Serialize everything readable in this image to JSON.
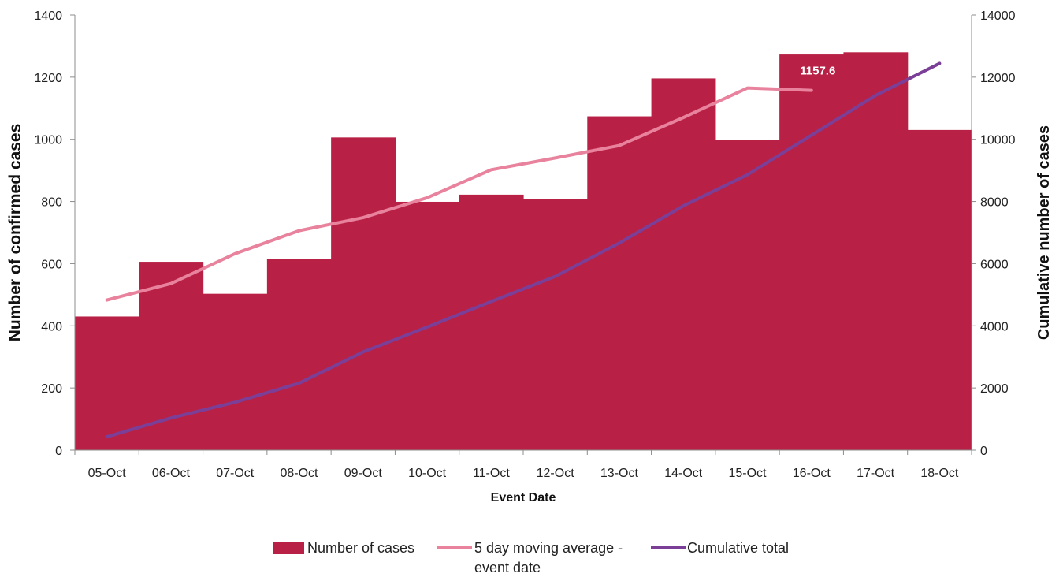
{
  "chart_data": {
    "type": "bar",
    "categories": [
      "05-Oct",
      "06-Oct",
      "07-Oct",
      "08-Oct",
      "09-Oct",
      "10-Oct",
      "11-Oct",
      "12-Oct",
      "13-Oct",
      "14-Oct",
      "15-Oct",
      "16-Oct",
      "17-Oct",
      "18-Oct"
    ],
    "series": [
      {
        "name": "Number of cases",
        "type": "bar",
        "axis": "left",
        "color": "#B82145",
        "values": [
          430,
          606,
          503,
          615,
          1006,
          799,
          822,
          809,
          1074,
          1196,
          999,
          1273,
          1280,
          1030
        ]
      },
      {
        "name": "5 day moving average - event date",
        "type": "line",
        "axis": "left",
        "color": "#E8829D",
        "values": [
          483,
          536,
          632,
          706,
          748,
          812,
          902,
          940,
          980,
          1070,
          1165,
          1157.6,
          null,
          null
        ]
      },
      {
        "name": "Cumulative total",
        "type": "line",
        "axis": "right",
        "color": "#7B3F98",
        "values": [
          430,
          1036,
          1539,
          2154,
          3160,
          3959,
          4781,
          5590,
          6664,
          7860,
          8859,
          10132,
          11412,
          12442
        ]
      }
    ],
    "data_labels": [
      {
        "series": "5 day moving average - event date",
        "category": "16-Oct",
        "text": "1157.6"
      }
    ],
    "xlabel": "Event Date",
    "ylabel": "Number of confirmed cases",
    "y2label": "Cumulative number of cases",
    "ylim": [
      0,
      1400
    ],
    "y2lim": [
      0,
      14000
    ],
    "yticks": [
      "0",
      "200",
      "400",
      "600",
      "800",
      "1000",
      "1200",
      "1400"
    ],
    "y2ticks": [
      "0",
      "2000",
      "4000",
      "6000",
      "8000",
      "10000",
      "12000",
      "14000"
    ],
    "grid": false,
    "legend_position": "bottom",
    "legend": [
      {
        "label": "Number of cases",
        "marker": "box",
        "color": "#B82145"
      },
      {
        "label_lines": [
          "5 day moving average -",
          "event date"
        ],
        "marker": "line",
        "color": "#E8829D"
      },
      {
        "label": "Cumulative total",
        "marker": "line",
        "color": "#7B3F98"
      }
    ]
  }
}
